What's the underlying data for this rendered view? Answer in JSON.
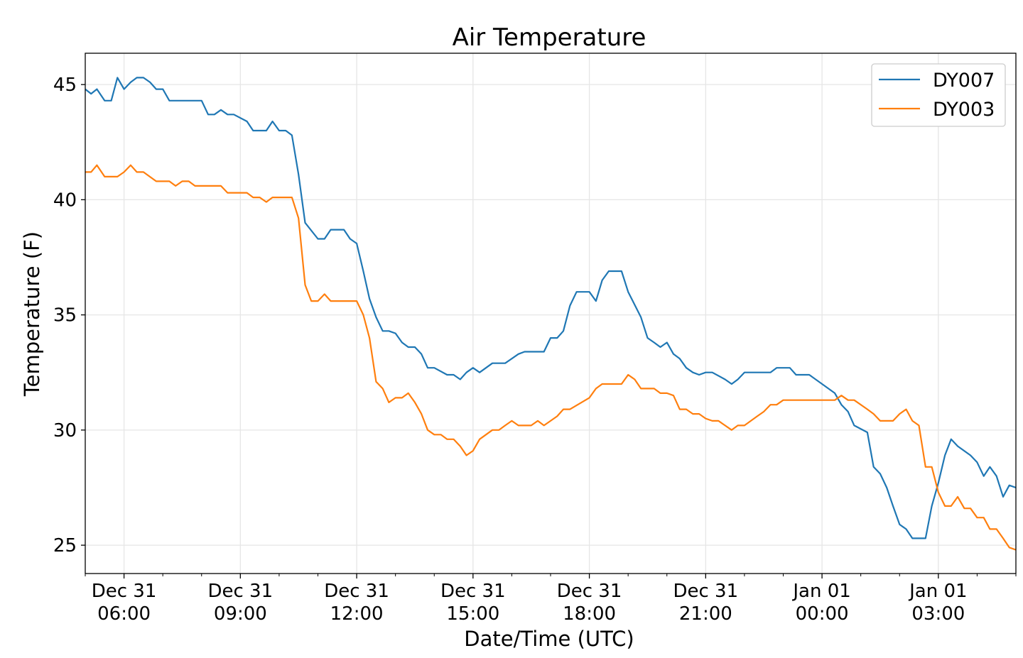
{
  "chart_data": {
    "type": "line",
    "title": "Air Temperature",
    "xlabel": "Date/Time (UTC)",
    "ylabel": "Temperature (F)",
    "x_units": "hours since Dec 31 05:00 UTC",
    "xlim": [
      0,
      24
    ],
    "ylim": [
      23.77,
      46.36
    ],
    "grid": true,
    "legend_position": "top-right",
    "y_ticks": [
      25,
      30,
      35,
      40,
      45
    ],
    "x_ticks": [
      {
        "x": 1,
        "line1": "Dec 31",
        "line2": "06:00"
      },
      {
        "x": 4,
        "line1": "Dec 31",
        "line2": "09:00"
      },
      {
        "x": 7,
        "line1": "Dec 31",
        "line2": "12:00"
      },
      {
        "x": 10,
        "line1": "Dec 31",
        "line2": "15:00"
      },
      {
        "x": 13,
        "line1": "Dec 31",
        "line2": "18:00"
      },
      {
        "x": 16,
        "line1": "Dec 31",
        "line2": "21:00"
      },
      {
        "x": 19,
        "line1": "Jan 01",
        "line2": "00:00"
      },
      {
        "x": 22,
        "line1": "Jan 01",
        "line2": "03:00"
      }
    ],
    "series": [
      {
        "name": "DY007",
        "color": "#1f77b4",
        "x": [
          0,
          0.15,
          0.3,
          0.5,
          0.67,
          0.83,
          1.0,
          1.17,
          1.33,
          1.5,
          1.67,
          1.83,
          2.0,
          2.17,
          3.0,
          3.17,
          3.33,
          3.5,
          3.67,
          3.83,
          4.17,
          4.33,
          4.67,
          4.83,
          5.0,
          5.17,
          5.33,
          5.5,
          5.67,
          6.0,
          6.17,
          6.33,
          6.67,
          6.83,
          7.0,
          7.17,
          7.33,
          7.5,
          7.67,
          7.83,
          8.0,
          8.17,
          8.33,
          8.5,
          8.67,
          8.83,
          9.0,
          9.33,
          9.5,
          9.67,
          9.83,
          10.0,
          10.17,
          10.5,
          10.83,
          11.17,
          11.33,
          11.83,
          12.0,
          12.17,
          12.33,
          12.5,
          12.67,
          13.0,
          13.17,
          13.33,
          13.5,
          13.83,
          14.0,
          14.33,
          14.5,
          14.67,
          14.83,
          15.0,
          15.17,
          15.33,
          15.5,
          15.67,
          15.83,
          16.0,
          16.17,
          16.5,
          16.67,
          16.83,
          17.0,
          17.67,
          17.83,
          18.17,
          18.33,
          18.67,
          19.33,
          19.5,
          19.67,
          19.83,
          20.17,
          20.33,
          20.5,
          20.67,
          20.83,
          21.0,
          21.17,
          21.33,
          21.67,
          21.83,
          22.0,
          22.17,
          22.33,
          22.5,
          22.83,
          23.0,
          23.17,
          23.33,
          23.5,
          23.67,
          23.83,
          24.0
        ],
        "y": [
          44.8,
          44.6,
          44.8,
          44.3,
          44.3,
          45.3,
          44.8,
          45.1,
          45.3,
          45.3,
          45.1,
          44.8,
          44.8,
          44.3,
          44.3,
          43.7,
          43.7,
          43.9,
          43.7,
          43.7,
          43.4,
          43.0,
          43.0,
          43.4,
          43.0,
          43.0,
          42.8,
          41.1,
          39.0,
          38.3,
          38.3,
          38.7,
          38.7,
          38.3,
          38.1,
          36.9,
          35.7,
          34.9,
          34.3,
          34.3,
          34.2,
          33.8,
          33.6,
          33.6,
          33.3,
          32.7,
          32.7,
          32.4,
          32.4,
          32.2,
          32.5,
          32.7,
          32.5,
          32.9,
          32.9,
          33.3,
          33.4,
          33.4,
          34.0,
          34.0,
          34.3,
          35.4,
          36.0,
          36.0,
          35.6,
          36.5,
          36.9,
          36.9,
          36.0,
          34.9,
          34.0,
          33.8,
          33.6,
          33.8,
          33.3,
          33.1,
          32.7,
          32.5,
          32.4,
          32.5,
          32.5,
          32.2,
          32.0,
          32.2,
          32.5,
          32.5,
          32.7,
          32.7,
          32.4,
          32.4,
          31.6,
          31.1,
          30.8,
          30.2,
          29.9,
          28.4,
          28.1,
          27.5,
          26.7,
          25.9,
          25.7,
          25.3,
          25.3,
          26.7,
          27.7,
          28.9,
          29.6,
          29.3,
          28.9,
          28.6,
          28.0,
          28.4,
          28.0,
          27.1,
          27.6,
          27.5
        ]
      },
      {
        "name": "DY003",
        "color": "#ff7f0e",
        "x": [
          0,
          0.15,
          0.3,
          0.5,
          0.83,
          1.0,
          1.17,
          1.33,
          1.5,
          1.83,
          2.17,
          2.33,
          2.5,
          2.67,
          2.83,
          3.5,
          3.67,
          4.17,
          4.33,
          4.5,
          4.67,
          4.83,
          5.33,
          5.5,
          5.67,
          5.83,
          6.0,
          6.17,
          6.33,
          7.0,
          7.17,
          7.33,
          7.5,
          7.67,
          7.83,
          8.0,
          8.17,
          8.33,
          8.5,
          8.67,
          8.83,
          9.0,
          9.17,
          9.33,
          9.5,
          9.67,
          9.83,
          10.0,
          10.17,
          10.5,
          10.67,
          10.83,
          11.0,
          11.17,
          11.5,
          11.67,
          11.83,
          12.17,
          12.33,
          12.5,
          13.0,
          13.17,
          13.33,
          13.83,
          14.0,
          14.17,
          14.33,
          14.67,
          14.83,
          15.0,
          15.17,
          15.33,
          15.5,
          15.67,
          15.83,
          16.0,
          16.17,
          16.33,
          16.67,
          16.83,
          17.0,
          17.33,
          17.5,
          17.67,
          17.83,
          18.0,
          19.33,
          19.5,
          19.67,
          19.83,
          20.17,
          20.33,
          20.5,
          20.83,
          21.0,
          21.17,
          21.33,
          21.5,
          21.67,
          21.83,
          22.0,
          22.17,
          22.33,
          22.5,
          22.67,
          22.83,
          23.0,
          23.17,
          23.33,
          23.5,
          23.67,
          23.83,
          24.0
        ],
        "y": [
          41.2,
          41.2,
          41.5,
          41.0,
          41.0,
          41.2,
          41.5,
          41.2,
          41.2,
          40.8,
          40.8,
          40.6,
          40.8,
          40.8,
          40.6,
          40.6,
          40.3,
          40.3,
          40.1,
          40.1,
          39.9,
          40.1,
          40.1,
          39.2,
          36.3,
          35.6,
          35.6,
          35.9,
          35.6,
          35.6,
          35.0,
          34.0,
          32.1,
          31.8,
          31.2,
          31.4,
          31.4,
          31.6,
          31.2,
          30.7,
          30.0,
          29.8,
          29.8,
          29.6,
          29.6,
          29.3,
          28.9,
          29.1,
          29.6,
          30.0,
          30.0,
          30.2,
          30.4,
          30.2,
          30.2,
          30.4,
          30.2,
          30.6,
          30.9,
          30.9,
          31.4,
          31.8,
          32.0,
          32.0,
          32.4,
          32.2,
          31.8,
          31.8,
          31.6,
          31.6,
          31.5,
          30.9,
          30.9,
          30.7,
          30.7,
          30.5,
          30.4,
          30.4,
          30.0,
          30.2,
          30.2,
          30.6,
          30.8,
          31.1,
          31.1,
          31.3,
          31.3,
          31.5,
          31.3,
          31.3,
          30.9,
          30.7,
          30.4,
          30.4,
          30.7,
          30.9,
          30.4,
          30.2,
          28.4,
          28.4,
          27.3,
          26.7,
          26.7,
          27.1,
          26.6,
          26.6,
          26.2,
          26.2,
          25.7,
          25.7,
          25.3,
          24.9,
          24.8
        ]
      }
    ]
  }
}
